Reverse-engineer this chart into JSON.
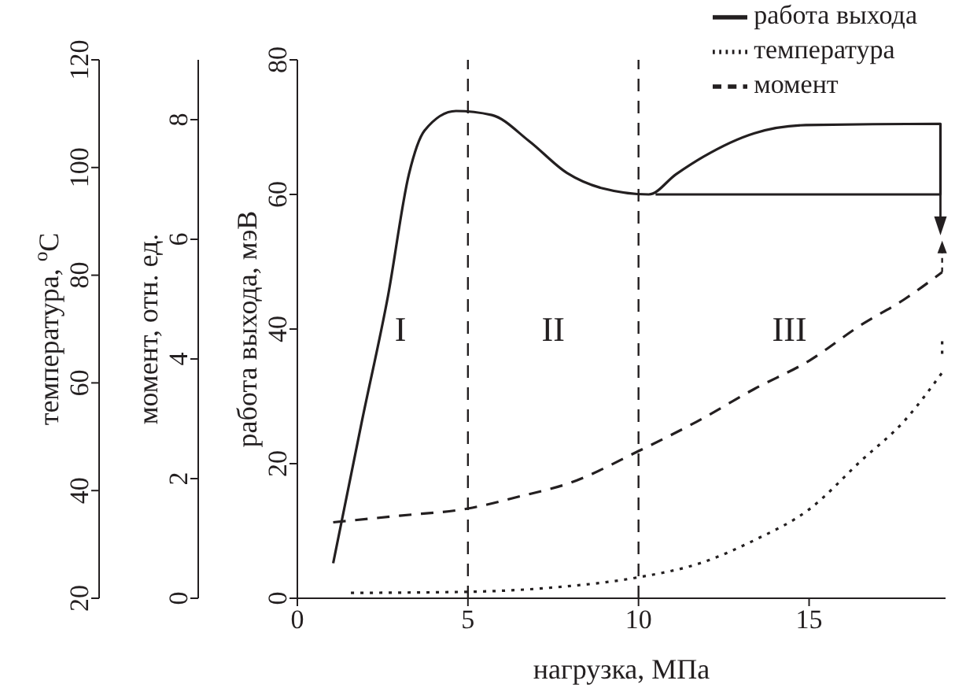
{
  "chart_data": {
    "type": "line",
    "xlabel": "нагрузка, МПа",
    "ylabel": "работа выхода, мэВ",
    "y2label": "момент, отн. ед.",
    "y3label": "температура, $^{o}$C",
    "xlim": [
      0,
      19
    ],
    "xticks": [
      0,
      5,
      10,
      15
    ],
    "ylim": [
      0,
      80
    ],
    "yticks": [
      0,
      20,
      40,
      60,
      80
    ],
    "y2lim": [
      0,
      9
    ],
    "y2ticks": [
      0,
      2,
      4,
      6,
      8
    ],
    "y3lim": [
      20,
      120
    ],
    "y3ticks": [
      20,
      40,
      60,
      80,
      100,
      120
    ],
    "legend": "top right",
    "grid": false,
    "marker": "none",
    "series": [
      {
        "name": "работа выхода",
        "color": "#231f20",
        "line_style": "solid",
        "axis": "y",
        "x": [
          1.05,
          1.9,
          2.66,
          3.27,
          3.73,
          4.65,
          5.7,
          6.8,
          7.9,
          8.95,
          10.3,
          11.1,
          11.9,
          13.4,
          14.9,
          18.85,
          18.85,
          14,
          10.5
        ],
        "values": [
          5.2,
          26.5,
          45,
          63,
          69.5,
          72.4,
          71.8,
          67.9,
          63.2,
          60.9,
          60,
          63,
          65.6,
          69.1,
          70.3,
          70.5,
          60,
          60,
          60
        ]
      },
      {
        "name": "температура",
        "color": "#231f20",
        "line_style": "dotted",
        "axis": "y3",
        "x": [
          1.57,
          5,
          7.5,
          10,
          11.8,
          13.4,
          15,
          16.5,
          17.8,
          18.9
        ],
        "values": [
          21,
          21.2,
          22,
          23.9,
          26.5,
          30.8,
          36.5,
          45.4,
          53,
          61.9
        ]
      },
      {
        "name": "момент",
        "color": "#231f20",
        "line_style": "dashed",
        "axis": "y2",
        "x": [
          1.05,
          3,
          5,
          6.5,
          8,
          10,
          11.7,
          13.4,
          15,
          16.5,
          17.8,
          18.9
        ],
        "values": [
          1.27,
          1.38,
          1.5,
          1.7,
          1.93,
          2.46,
          2.95,
          3.5,
          3.97,
          4.56,
          5,
          5.45
        ]
      }
    ],
    "ref_lines": [
      {
        "axis": "x",
        "value": 5,
        "line_style": "dashed",
        "color": "#231f20"
      },
      {
        "axis": "x",
        "value": 10,
        "line_style": "dashed",
        "color": "#231f20"
      }
    ],
    "annotations": [
      "I",
      "II",
      "III"
    ]
  }
}
